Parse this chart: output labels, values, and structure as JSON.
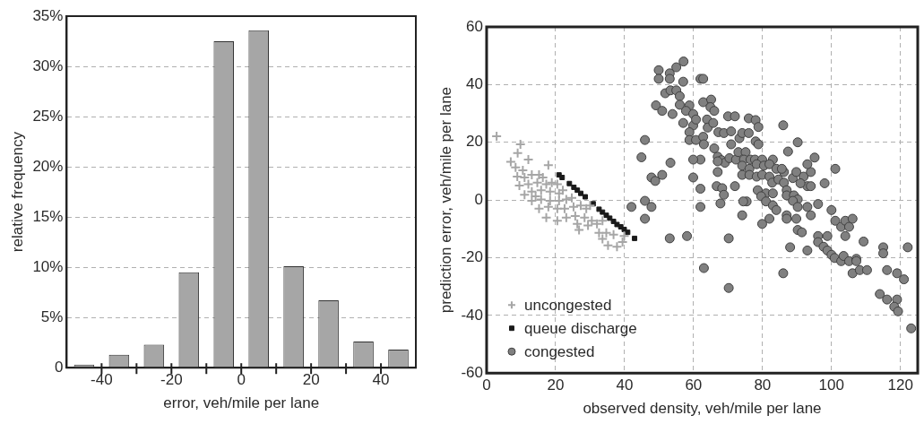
{
  "chart_data": [
    {
      "type": "histogram",
      "xlabel": "error, veh/mile per lane",
      "ylabel": "relative frequency",
      "bins": [
        -50,
        -40,
        -30,
        -20,
        -10,
        0,
        10,
        20,
        30,
        40,
        50
      ],
      "values": [
        0.3,
        1.3,
        2.3,
        9.5,
        32.5,
        33.6,
        10.1,
        6.7,
        2.6,
        1.8
      ],
      "color": "#a6a6a6",
      "xlim": [
        -50,
        50
      ],
      "xticks": [
        -40,
        {
          "value": -30,
          "label": null
        },
        -20,
        {
          "value": -10,
          "label": null
        },
        0,
        {
          "value": 10,
          "label": null
        },
        20,
        {
          "value": 30,
          "label": null
        },
        40
      ],
      "ylim": [
        0,
        35
      ],
      "yticks": [
        0,
        {
          "value": 5,
          "label": "5%"
        },
        {
          "value": 10,
          "label": "10%"
        },
        {
          "value": 15,
          "label": "15%"
        },
        {
          "value": 20,
          "label": "20%"
        },
        {
          "value": 25,
          "label": "25%"
        },
        {
          "value": 30,
          "label": "30%"
        },
        {
          "value": 35,
          "label": "35%"
        }
      ],
      "grid": "y"
    },
    {
      "type": "scatter",
      "xlabel": "observed density, veh/mile per lane",
      "ylabel": "prediction error, veh/mile per lane",
      "xlim": [
        0,
        125
      ],
      "xticks": [
        0,
        20,
        40,
        60,
        80,
        100,
        120
      ],
      "ylim": [
        -60,
        60
      ],
      "yticks": [
        -60,
        -40,
        -20,
        0,
        20,
        40,
        60
      ],
      "grid": true,
      "legend": "bottom left",
      "series": [
        {
          "name": "uncongested",
          "color": "#a6a6a6",
          "marker": "cross",
          "x": [
            2.9,
            9.8,
            9,
            12.1,
            17.9,
            7,
            8.4,
            10.5,
            8.9,
            11,
            13.1,
            15.2,
            16.3,
            9.5,
            12.1,
            14.7,
            17.3,
            18.9,
            20.5,
            11,
            13.1,
            15.8,
            18.4,
            21,
            22.1,
            13.1,
            15.8,
            18.4,
            21,
            23.1,
            24.7,
            15.2,
            17.9,
            20.5,
            22.6,
            25.2,
            27.3,
            28.9,
            20.5,
            23.1,
            25.7,
            28.4,
            30.5,
            26.8,
            29.4,
            32,
            33.6,
            32.6,
            34.7,
            36.8,
            33.6,
            35.2,
            37.8,
            39.4,
            39.9,
            30,
            17.3,
            26.3,
            14.2
          ],
          "values": [
            22.1,
            19.3,
            16.3,
            14,
            12.1,
            13.2,
            11.3,
            10.3,
            8.1,
            7.8,
            8.7,
            8.7,
            7.8,
            5,
            5.5,
            6,
            5.5,
            6,
            5.5,
            1.8,
            2.9,
            3.4,
            2.9,
            2.3,
            3.4,
            -0.3,
            0.2,
            -0.3,
            -0.3,
            0.2,
            0.7,
            -3,
            -2.4,
            -3,
            -3,
            -2.4,
            -1.9,
            -3,
            -7.2,
            -6.1,
            -5.6,
            -6.1,
            -7.2,
            -10.4,
            -8.8,
            -8.3,
            -7.2,
            -11.4,
            -11.4,
            -12,
            -13.5,
            -15.7,
            -16.2,
            -14.6,
            -12.5,
            -1.9,
            -6.1,
            -8.3,
            1.3
          ]
        },
        {
          "name": "queue discharge",
          "color": "#1a1a1a",
          "marker": "square",
          "x": [
            21,
            21.9,
            24,
            25.3,
            26.3,
            27.3,
            28.6,
            30.9,
            32.6,
            33.6,
            34.7,
            35.7,
            36.8,
            37.8,
            38.9,
            39.9,
            40.9,
            42.9
          ],
          "values": [
            8.7,
            7.8,
            5.7,
            4.4,
            3.4,
            2.3,
            1.1,
            -1.3,
            -3.2,
            -4.2,
            -5.3,
            -6.3,
            -7.4,
            -8.5,
            -9.3,
            -10.2,
            -11.2,
            -13.3
          ]
        },
        {
          "name": "congested",
          "color": "#808080",
          "marker": "circle",
          "x": [
            49.9,
            49.9,
            53.1,
            53.1,
            55,
            57.1,
            57,
            62,
            62.8,
            51.8,
            53.3,
            55,
            56,
            49.1,
            50.9,
            53.9,
            56,
            58.8,
            57.8,
            59.9,
            57,
            59.9,
            60.7,
            62.8,
            65.1,
            64.9,
            66,
            63.9,
            64.1,
            65.7,
            67.2,
            58.8,
            58.8,
            60.7,
            62.8,
            63,
            66,
            70,
            72,
            68.8,
            70.9,
            70.9,
            73.3,
            74.1,
            76,
            76,
            78,
            78.8,
            86,
            78,
            78.8,
            90.2,
            87.4,
            67,
            68.1,
            69.1,
            70.4,
            72.3,
            73,
            75.1,
            74.6,
            76.5,
            77.8,
            79.9,
            83,
            74.1,
            76.2,
            78.3,
            80.4,
            82,
            84,
            86.2,
            85.6,
            74.1,
            76.2,
            78.3,
            79.9,
            82,
            82.8,
            84.6,
            86.2,
            88.8,
            89.8,
            91.9,
            94,
            93,
            95.1,
            101.1,
            98,
            93,
            94,
            91,
            78.6,
            81,
            79.6,
            83,
            87,
            87,
            89.1,
            90.2,
            88.8,
            81,
            83,
            84,
            90.2,
            93,
            96.1,
            94,
            87,
            87,
            89.8,
            82,
            79.9,
            75.4,
            74.4,
            74.1,
            67,
            67,
            62,
            59.9,
            59.9,
            62,
            66.7,
            68.3,
            68.8,
            72,
            67.8,
            62,
            53.3,
            50.9,
            47.8,
            48.9,
            44.9,
            45.9,
            45.9,
            47.8,
            42,
            45.9,
            53.1,
            58.1,
            70.2,
            63,
            70.2,
            86,
            88,
            90.2,
            91.4,
            93,
            96.1,
            96.1,
            98.8,
            97.7,
            98.8,
            100,
            101.1,
            100,
            102.8,
            104,
            105.1,
            104,
            106.1,
            109.3,
            100.9,
            102.8,
            103.5,
            105.1,
            107.2,
            107.2,
            106.1,
            108.2,
            110.3,
            115,
            115,
            116.1,
            119,
            121,
            122.1,
            114,
            116.1,
            119,
            118.2,
            119.3,
            123.1
          ],
          "values": [
            45,
            42,
            43.9,
            42,
            46,
            48,
            41,
            42,
            42,
            37,
            38,
            38,
            36,
            32.8,
            30.9,
            29.8,
            33,
            32.8,
            30.9,
            29.8,
            26.7,
            25.8,
            27.9,
            33.9,
            34.8,
            32.2,
            30.9,
            27.9,
            25.1,
            26.7,
            23.5,
            23.5,
            20.8,
            20.8,
            21.9,
            19.3,
            17.9,
            29,
            29,
            23.2,
            23.8,
            19.3,
            21.4,
            23.2,
            23.2,
            28.3,
            27.7,
            25.3,
            25.9,
            20.3,
            19.3,
            20,
            16.8,
            15,
            13.8,
            12.9,
            14.5,
            14,
            16.6,
            16.6,
            14,
            14,
            14,
            14,
            14,
            11.9,
            10.8,
            12.4,
            11.9,
            12.4,
            10.8,
            9.7,
            10.8,
            8.7,
            8.7,
            8.1,
            8.7,
            8.1,
            6,
            7.1,
            6,
            7.6,
            9.7,
            8.1,
            9.7,
            12.4,
            14.7,
            10.8,
            5.8,
            4.8,
            4.8,
            5.8,
            3.4,
            2.3,
            1.3,
            2.3,
            3.4,
            1.6,
            1.6,
            0.2,
            -0.3,
            -0.5,
            -1.9,
            -3.5,
            -2.4,
            -2.4,
            -1.4,
            -5.3,
            -5.3,
            -6.5,
            -6.5,
            -6.5,
            -8.3,
            -0.5,
            -0.5,
            -5.3,
            13.4,
            9.7,
            14,
            14,
            7.8,
            3.9,
            4.8,
            4.1,
            1.8,
            4.8,
            -1.2,
            -2.4,
            12.9,
            8.7,
            7.8,
            6.6,
            14.8,
            20.8,
            -0.3,
            -2.4,
            -2.4,
            -6.5,
            -13.3,
            -12.5,
            -13.3,
            -23.6,
            -30.5,
            -25.4,
            -16.4,
            -10.4,
            -11.2,
            -17.5,
            -12.5,
            -14.6,
            -12.5,
            -16.2,
            -17.5,
            -19,
            -7.2,
            -3.5,
            -9.3,
            -7.2,
            -9.3,
            -12.5,
            -6.5,
            -14.4,
            -20.1,
            -21.2,
            -19.4,
            -21.2,
            -20.4,
            -21.2,
            -25.4,
            -24.3,
            -24.3,
            -16.4,
            -18.5,
            -24.3,
            -25.4,
            -27.5,
            -16.4,
            -32.6,
            -34.5,
            -34.5,
            -37,
            -38.6,
            -44.5
          ]
        }
      ]
    }
  ]
}
